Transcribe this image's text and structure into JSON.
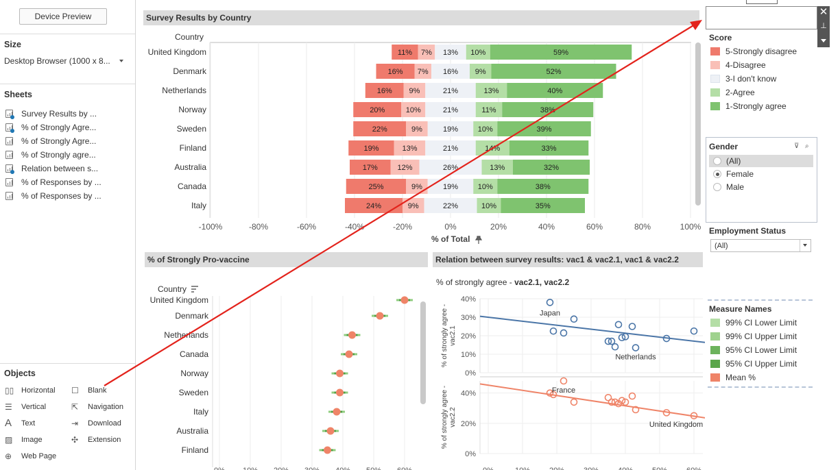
{
  "left_panel": {
    "device_preview": "Device Preview",
    "size_title": "Size",
    "size_value": "Desktop Browser (1000 x 8...",
    "sheets_title": "Sheets",
    "sheets": [
      {
        "label": "Survey Results by ...",
        "checked": true
      },
      {
        "label": "% of Strongly Agre...",
        "checked": true
      },
      {
        "label": "% of Strongly Agre...",
        "checked": false
      },
      {
        "label": "% of Strongly agre...",
        "checked": false
      },
      {
        "label": "Relation between s...",
        "checked": true
      },
      {
        "label": "% of Responses by ...",
        "checked": false
      },
      {
        "label": "% of Responses by ...",
        "checked": false
      }
    ],
    "objects_title": "Objects",
    "objects": [
      {
        "label": "Horizontal",
        "icon": "horizontal-icon"
      },
      {
        "label": "Blank",
        "icon": "blank-icon"
      },
      {
        "label": "Vertical",
        "icon": "vertical-icon"
      },
      {
        "label": "Navigation",
        "icon": "navigation-icon"
      },
      {
        "label": "Text",
        "icon": "text-icon"
      },
      {
        "label": "Download",
        "icon": "download-icon"
      },
      {
        "label": "Image",
        "icon": "image-icon"
      },
      {
        "label": "Extension",
        "icon": "extension-icon"
      },
      {
        "label": "Web Page",
        "icon": "globe-icon"
      }
    ]
  },
  "headers": {
    "survey": "Survey Results by Country",
    "pro_vaccine": "% of Strongly Pro-vaccine",
    "relation": "Relation between survey results: vac1 & vac2.1, vac1 & vac2.2"
  },
  "colors": {
    "strongly_disagree": "#ef7a6c",
    "disagree": "#f9bfb7",
    "dont_know": "#eef1f6",
    "agree": "#b4dea6",
    "strongly_agree": "#7fc36f",
    "blue": "#4a75a7",
    "salmon": "#ef8468"
  },
  "chart_data": [
    {
      "type": "bar",
      "title": "Survey Results by Country",
      "ylabel": "Country",
      "xlabel": "% of Total",
      "xlim": [
        -100,
        100
      ],
      "x_ticks": [
        "-100%",
        "-80%",
        "-60%",
        "-40%",
        "-20%",
        "0%",
        "20%",
        "40%",
        "60%",
        "80%",
        "100%"
      ],
      "categories": [
        "United Kingdom",
        "Denmark",
        "Netherlands",
        "Norway",
        "Sweden",
        "Finland",
        "Australia",
        "Canada",
        "Italy"
      ],
      "series": [
        {
          "name": "5-Strongly disagree",
          "values": [
            11,
            16,
            16,
            20,
            22,
            19,
            17,
            25,
            24
          ]
        },
        {
          "name": "4-Disagree",
          "values": [
            7,
            7,
            9,
            10,
            9,
            13,
            12,
            9,
            9
          ]
        },
        {
          "name": "3-I don't know",
          "values": [
            13,
            16,
            21,
            21,
            19,
            21,
            26,
            19,
            22
          ]
        },
        {
          "name": "2-Agree",
          "values": [
            10,
            9,
            13,
            11,
            10,
            14,
            13,
            10,
            10
          ]
        },
        {
          "name": "1-Strongly agree",
          "values": [
            59,
            52,
            40,
            38,
            39,
            33,
            32,
            38,
            35
          ]
        }
      ]
    },
    {
      "type": "scatter",
      "title": "% of Strongly Pro-vaccine",
      "ylabel": "Country",
      "x_ticks": [
        "0%",
        "10%",
        "20%",
        "30%",
        "40%",
        "50%",
        "60%"
      ],
      "categories": [
        "United Kingdom",
        "Denmark",
        "Netherlands",
        "Canada",
        "Norway",
        "Sweden",
        "Italy",
        "Australia",
        "Finland"
      ],
      "values": [
        60,
        52,
        43,
        42,
        39,
        39,
        38,
        36,
        35
      ]
    },
    {
      "type": "scatter",
      "title": "% of strongly agree - vac2.1, vac2.2",
      "title_prefix": "% of strongly agree - ",
      "title_bold": "vac2.1, vac2.2",
      "x_ticks": [
        "0%",
        "10%",
        "20%",
        "30%",
        "40%",
        "50%",
        "60%"
      ],
      "panels": [
        {
          "ylabel": "% of strongly agree - vac2.1",
          "y_ticks": [
            "0%",
            "10%",
            "20%",
            "30%",
            "40%"
          ],
          "ylim": [
            0,
            40
          ],
          "points": [
            [
              18,
              38
            ],
            [
              19,
              22.5
            ],
            [
              22,
              21.5
            ],
            [
              25,
              29
            ],
            [
              35,
              17
            ],
            [
              36,
              17
            ],
            [
              37,
              14
            ],
            [
              38,
              26
            ],
            [
              39,
              19
            ],
            [
              40,
              19.5
            ],
            [
              42,
              25
            ],
            [
              43,
              13.5
            ],
            [
              52,
              18.5
            ],
            [
              60,
              22.5
            ]
          ],
          "trend": [
            [
              0,
              30.5
            ],
            [
              65,
              16
            ]
          ],
          "annotations": [
            {
              "text": "Japan",
              "x": 18,
              "y": 38
            },
            {
              "text": "Netherlands",
              "x": 43,
              "y": 13.5
            }
          ]
        },
        {
          "ylabel": "% of strongly agree - vac2.2",
          "y_ticks": [
            "0%",
            "20%",
            "40%"
          ],
          "ylim": [
            0,
            48
          ],
          "points": [
            [
              18,
              40
            ],
            [
              19,
              39
            ],
            [
              22,
              48
            ],
            [
              25,
              34
            ],
            [
              35,
              37
            ],
            [
              36,
              34
            ],
            [
              37,
              34
            ],
            [
              38,
              33
            ],
            [
              39,
              35
            ],
            [
              40,
              34
            ],
            [
              42,
              38
            ],
            [
              43,
              29
            ],
            [
              52,
              27
            ],
            [
              60,
              25
            ]
          ],
          "trend": [
            [
              0,
              46
            ],
            [
              65,
              23
            ]
          ],
          "annotations": [
            {
              "text": "France",
              "x": 22,
              "y": 48
            },
            {
              "text": "United Kingdom",
              "x": 60,
              "y": 25
            }
          ]
        }
      ]
    }
  ],
  "survey_labels": {
    "country_header": "Country",
    "pct_total": "% of Total"
  },
  "pro_vaccine_labels": {
    "country_header": "Country"
  },
  "relation_labels": {
    "annotation_japan": "Japan",
    "annotation_netherlands": "Netherlands",
    "annotation_france": "France",
    "annotation_uk": "United Kingdom"
  },
  "right_panel": {
    "score_title": "Score",
    "score_items": [
      {
        "label": "5-Strongly disagree",
        "color": "#ef7a6c"
      },
      {
        "label": "4-Disagree",
        "color": "#f9bfb7"
      },
      {
        "label": "3-I don't know",
        "color": "#eef1f6"
      },
      {
        "label": "2-Agree",
        "color": "#b4dea6"
      },
      {
        "label": "1-Strongly agree",
        "color": "#7fc36f"
      }
    ],
    "gender_title": "Gender",
    "gender_options": [
      {
        "label": "(All)",
        "selected": false
      },
      {
        "label": "Female",
        "selected": true
      },
      {
        "label": "Male",
        "selected": false
      }
    ],
    "employment_title": "Employment Status",
    "employment_value": "(All)",
    "measure_title": "Measure Names",
    "measure_items": [
      {
        "label": "99% CI Lower Limit",
        "color": "#b4dea6"
      },
      {
        "label": "99% CI Upper Limit",
        "color": "#9fd28e"
      },
      {
        "label": "95% CI Lower Limit",
        "color": "#6cb35c"
      },
      {
        "label": "95% CI Upper Limit",
        "color": "#5aa64b"
      },
      {
        "label": "Mean %",
        "color": "#ef8468"
      }
    ]
  }
}
